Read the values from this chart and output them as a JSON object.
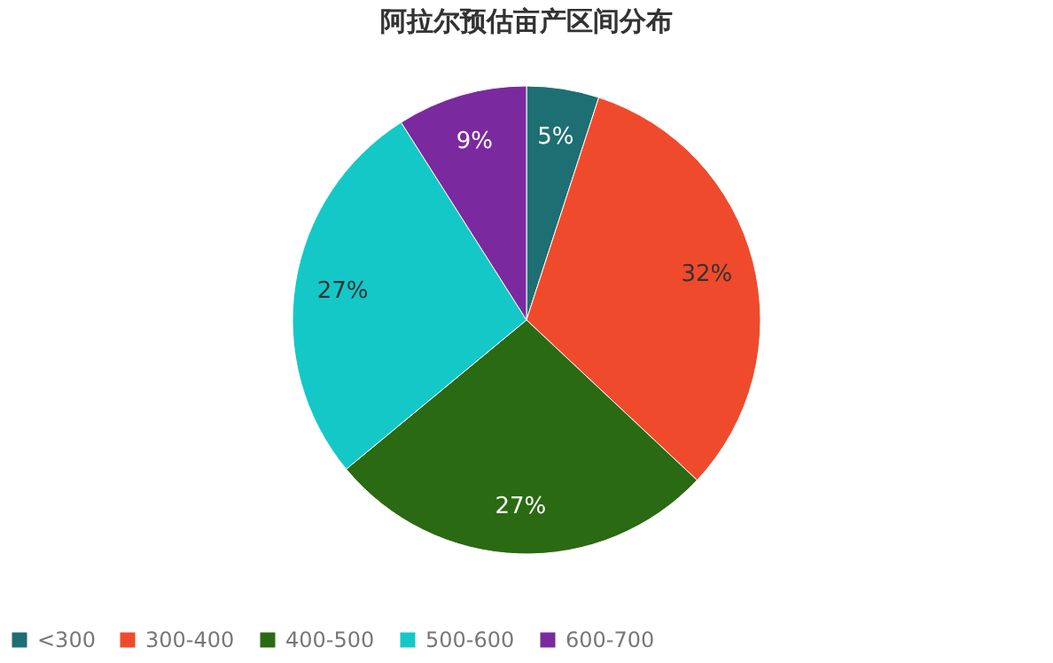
{
  "chart_data": {
    "type": "pie",
    "title": "阿拉尔预估亩产区间分布",
    "categories": [
      "<300",
      "300-400",
      "400-500",
      "500-600",
      "600-700"
    ],
    "values": [
      5,
      32,
      27,
      27,
      9
    ],
    "value_labels": [
      "5%",
      "32%",
      "27%",
      "27%",
      "9%"
    ],
    "colors": [
      "#1d6f73",
      "#f04a2c",
      "#2a6a12",
      "#14c8c8",
      "#7a2a9e"
    ],
    "legend": "bottom"
  }
}
